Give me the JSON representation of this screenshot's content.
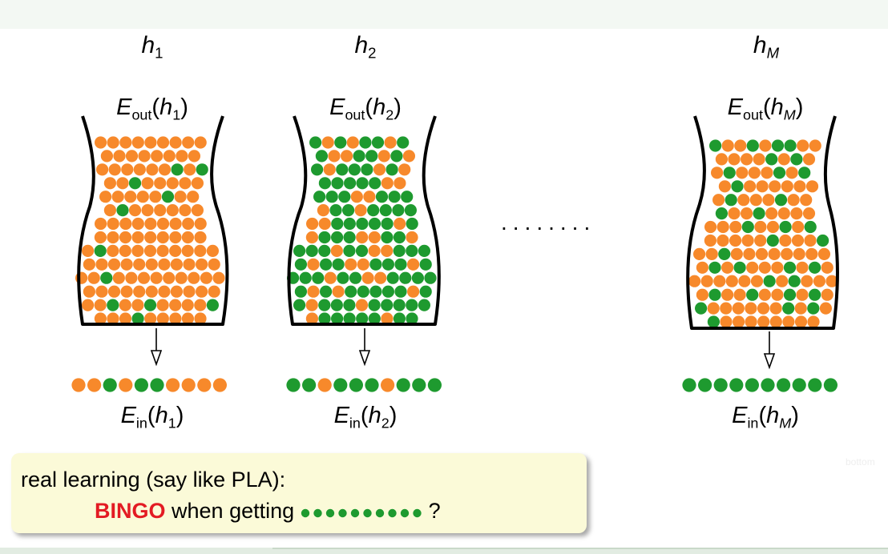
{
  "colors": {
    "orange": "#f7892b",
    "green": "#1e9a2f",
    "bingo_red": "#e31b23",
    "callout_bg": "#fbfad8"
  },
  "hypotheses": [
    {
      "label": "h",
      "sub": "1",
      "eout": "E",
      "eout_sub": "out",
      "ein": "E",
      "ein_sub": "in",
      "arg": "h",
      "arg_sub": "1",
      "jar_colors": "OOOOOOOOOOOOOOOOOOOOOOOGOGOOGOOOOOOOOOOGOOOGOOOOOOOOOOOOOOOOOOOOOOOOOGOOOOOOOOOOOOOOOOOOOOOOGOOOOOOOOOOOOOOOOOOOOOOGOOGOOOOGOOOGOOOOOOOOOOOOOOOGOOOOOOOOOOOOOOOOOOOOOOOOOOOGOOOOOOOOOOOOOOOOOOOOOOOOGOOOOOOOOGOOOOOOOOOOOOGOOOOOOOOOGOOOOGOOOOGOOOOOGOOOOOOOOOOOOOOOOOOOOOOGOOOOOOGOOOOOOOGOOOOOOOOOOOOOOOO",
      "sample": "OOGOGGOOOO"
    },
    {
      "label": "h",
      "sub": "2",
      "eout": "E",
      "eout_sub": "out",
      "ein": "E",
      "ein_sub": "in",
      "arg": "h",
      "arg_sub": "2",
      "jar_colors": "GOGOGGOGGOOGGOGOGOGGGOGOGGGGGOOGGGOOGGGOGGOGGGGOOGGGGGOGOGGGOOGGOGGGOGGOOGGGGOGGOOGGGOGGGGOGGOOGGGGGOGOGGGGGOGGOGGGOGGGGGOGGGGGOGGGGOGGGOOGGGGOGGGGOGGGGGGOOGGOGGOGOGGGGOGGGOGGGOGOOGGGOGGOOGGGOGGGOGGGGGOOGGGOGGGGOGGOGGGGGGOGOGGGGGGGOGOGOGGGOGGGOGGGOGGOGGOGGOGOGGOGGOOGGGGOGGOGGG",
      "sample": "GGOGGGOGGG"
    },
    {
      "label": "h",
      "sub": "M",
      "eout": "E",
      "eout_sub": "out",
      "ein": "E",
      "ein_sub": "in",
      "arg": "h",
      "arg_sub": "M",
      "jar_colors": "GOOGOGGOOOOOOGOGOOGOOOGOGOGOOOOOOOGOOOGOOGOOGOOOOOOOGOOGOGOOOOOGOOOGOOGOOOOOOOOOGOGOOOGOGOOOOOOOGOGOOOOGOOGOOGOGOGOOOOOOGOGOGOOOOOOOOOGOOOOOOOGOOGOOOOOOOOGGOOOOOOOOOOOGOOOGOOOOOOOOOOOOGOOOOOOOGOOOOGOOOOOOOOOOGOOOOOGOOOOOOOOOOOGGOOOGOOOOOOOOGOOOOGOOGOOOOOOOOOGOOOOOOOGOOOOGOOOOOOGOOOGOOOOOOO",
      "sample": "GGGGGGGGGG"
    }
  ],
  "ellipsis": "........",
  "callout": {
    "line1": "real learning (say like PLA):",
    "bingo": "BINGO",
    "line2": "when getting",
    "question": "?",
    "sample_colors": "GGGGGGGGGG"
  },
  "watermark": "bottom"
}
